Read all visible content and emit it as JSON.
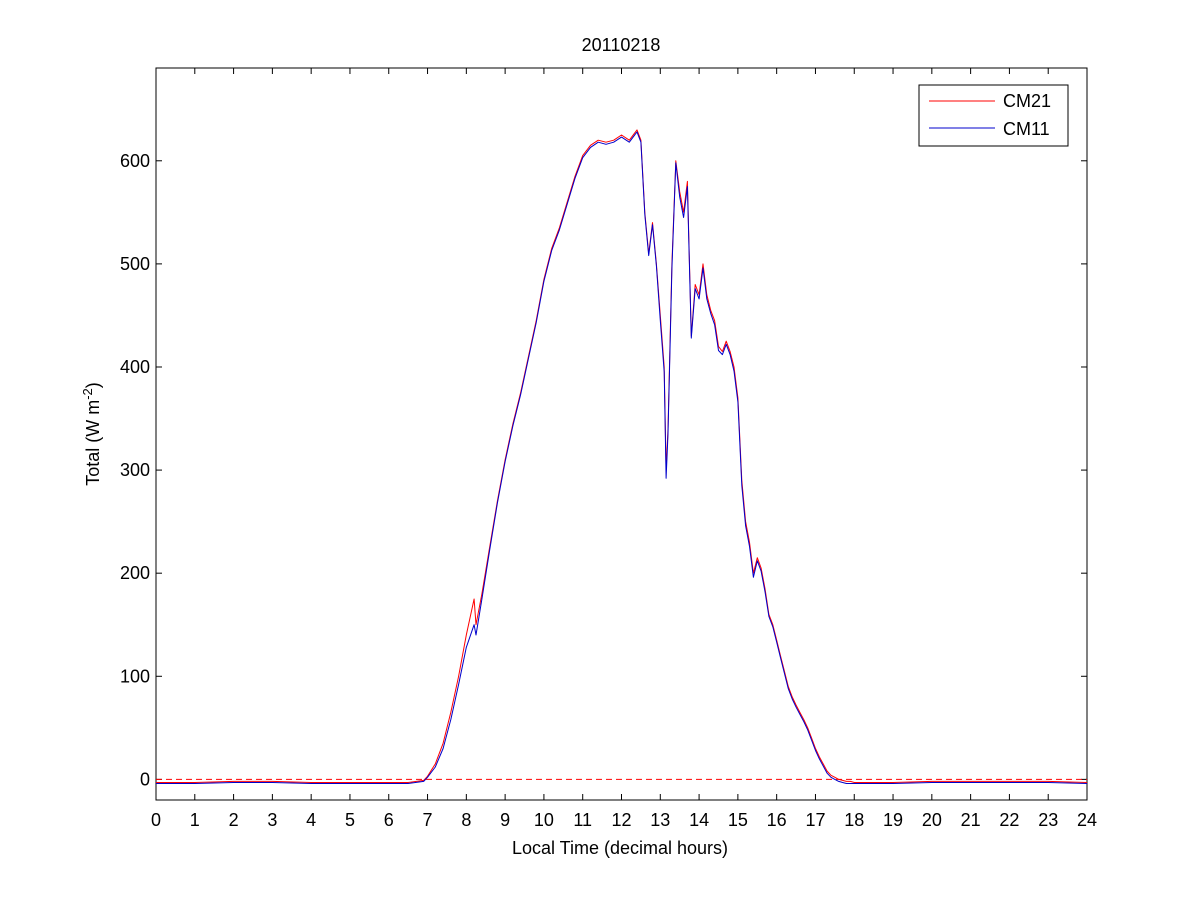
{
  "colors": {
    "background": "#ffffff",
    "axis": "#000000",
    "zero_line": "#ff0000"
  },
  "chart_data": {
    "type": "line",
    "title": "20110218",
    "xlabel": "Local Time (decimal hours)",
    "ylabel": "Total (W m",
    "ylabel_sup": "-2",
    "ylabel_end": ")",
    "xlim": [
      0,
      24
    ],
    "ylim": [
      -20,
      690
    ],
    "xticks": [
      0,
      1,
      2,
      3,
      4,
      5,
      6,
      7,
      8,
      9,
      10,
      11,
      12,
      13,
      14,
      15,
      16,
      17,
      18,
      19,
      20,
      21,
      22,
      23,
      24
    ],
    "yticks": [
      0,
      100,
      200,
      300,
      400,
      500,
      600
    ],
    "grid": false,
    "legend": "top-right",
    "reference_line": {
      "y": 0,
      "style": "dashed",
      "color": "#ff0000"
    },
    "series": [
      {
        "name": "CM21",
        "color": "#ff0000",
        "x": [
          0,
          1,
          2,
          3,
          4,
          5,
          6,
          6.5,
          6.9,
          7.0,
          7.2,
          7.4,
          7.6,
          7.8,
          8.0,
          8.2,
          8.25,
          8.4,
          8.6,
          8.8,
          9.0,
          9.2,
          9.4,
          9.6,
          9.8,
          10.0,
          10.2,
          10.4,
          10.6,
          10.8,
          11.0,
          11.2,
          11.4,
          11.6,
          11.8,
          12.0,
          12.2,
          12.4,
          12.5,
          12.6,
          12.7,
          12.8,
          12.9,
          13.0,
          13.1,
          13.15,
          13.2,
          13.3,
          13.4,
          13.5,
          13.6,
          13.7,
          13.8,
          13.9,
          14.0,
          14.1,
          14.2,
          14.3,
          14.4,
          14.5,
          14.6,
          14.7,
          14.8,
          14.9,
          15.0,
          15.1,
          15.2,
          15.3,
          15.4,
          15.5,
          15.6,
          15.7,
          15.8,
          15.9,
          16.0,
          16.1,
          16.2,
          16.3,
          16.4,
          16.5,
          16.6,
          16.7,
          16.8,
          16.9,
          17.0,
          17.1,
          17.2,
          17.3,
          17.4,
          17.5,
          17.6,
          17.7,
          17.8,
          17.9,
          18.0,
          19,
          20,
          21,
          22,
          23,
          24
        ],
        "y": [
          -3,
          -3,
          -2,
          -2,
          -3,
          -3,
          -3,
          -3,
          -1,
          3,
          15,
          35,
          65,
          100,
          140,
          175,
          150,
          180,
          225,
          270,
          310,
          345,
          375,
          410,
          445,
          485,
          515,
          535,
          560,
          585,
          605,
          615,
          620,
          618,
          620,
          625,
          620,
          630,
          620,
          550,
          510,
          540,
          500,
          450,
          400,
          300,
          340,
          500,
          600,
          570,
          550,
          580,
          430,
          480,
          470,
          500,
          470,
          455,
          445,
          420,
          415,
          425,
          415,
          400,
          370,
          290,
          250,
          230,
          200,
          215,
          205,
          185,
          160,
          150,
          135,
          120,
          105,
          90,
          80,
          72,
          65,
          58,
          50,
          40,
          30,
          22,
          15,
          8,
          4,
          2,
          0,
          -1,
          -2,
          -2,
          -3,
          -3,
          -2,
          -2,
          -2,
          -2,
          -3
        ]
      },
      {
        "name": "CM11",
        "color": "#0000cc",
        "x": [
          0,
          1,
          2,
          3,
          4,
          5,
          6,
          6.5,
          6.9,
          7.0,
          7.2,
          7.4,
          7.6,
          7.8,
          8.0,
          8.2,
          8.25,
          8.4,
          8.6,
          8.8,
          9.0,
          9.2,
          9.4,
          9.6,
          9.8,
          10.0,
          10.2,
          10.4,
          10.6,
          10.8,
          11.0,
          11.2,
          11.4,
          11.6,
          11.8,
          12.0,
          12.2,
          12.4,
          12.5,
          12.6,
          12.7,
          12.8,
          12.9,
          13.0,
          13.1,
          13.15,
          13.2,
          13.3,
          13.4,
          13.5,
          13.6,
          13.7,
          13.8,
          13.9,
          14.0,
          14.1,
          14.2,
          14.3,
          14.4,
          14.5,
          14.6,
          14.7,
          14.8,
          14.9,
          15.0,
          15.1,
          15.2,
          15.3,
          15.4,
          15.5,
          15.6,
          15.7,
          15.8,
          15.9,
          16.0,
          16.1,
          16.2,
          16.3,
          16.4,
          16.5,
          16.6,
          16.7,
          16.8,
          16.9,
          17.0,
          17.1,
          17.2,
          17.3,
          17.4,
          17.5,
          17.6,
          17.7,
          17.8,
          17.9,
          18.0,
          19,
          20,
          21,
          22,
          23,
          24
        ],
        "y": [
          -4,
          -4,
          -3,
          -3,
          -4,
          -4,
          -4,
          -4,
          -2,
          2,
          12,
          30,
          58,
          92,
          128,
          150,
          140,
          175,
          222,
          268,
          308,
          343,
          373,
          408,
          443,
          483,
          513,
          533,
          558,
          583,
          603,
          613,
          618,
          616,
          618,
          623,
          618,
          628,
          618,
          548,
          508,
          538,
          498,
          445,
          395,
          292,
          335,
          495,
          598,
          565,
          545,
          575,
          428,
          476,
          466,
          496,
          466,
          452,
          441,
          416,
          412,
          422,
          412,
          396,
          366,
          285,
          246,
          226,
          196,
          212,
          202,
          182,
          158,
          148,
          133,
          118,
          103,
          88,
          78,
          70,
          63,
          56,
          48,
          38,
          28,
          20,
          13,
          6,
          2,
          0,
          -2,
          -3,
          -4,
          -4,
          -4,
          -4,
          -3,
          -3,
          -3,
          -3,
          -4
        ]
      }
    ]
  }
}
